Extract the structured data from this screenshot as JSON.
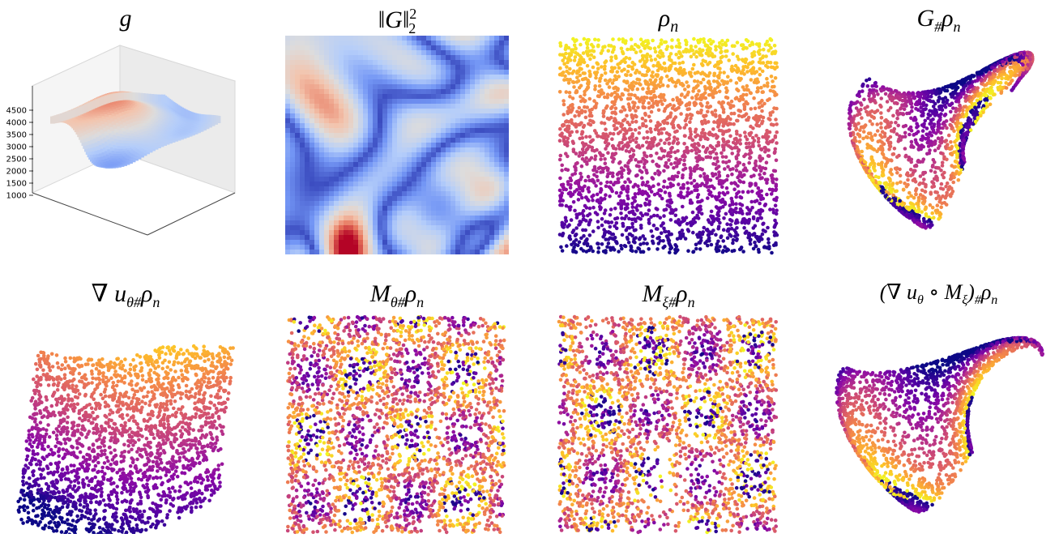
{
  "figure": {
    "panels": [
      {
        "id": "g",
        "title_main": "g",
        "kind": "surface3d",
        "z_ticks": [
          "4500",
          "4000",
          "3500",
          "3000",
          "2500",
          "2000",
          "1500",
          "1000"
        ]
      },
      {
        "id": "G-norm",
        "title_main": "‖G‖",
        "title_sup": "2",
        "title_sub": "2",
        "kind": "heatmap"
      },
      {
        "id": "rho-n",
        "title_main": "ρ",
        "title_sub": "n",
        "kind": "scatter-grid"
      },
      {
        "id": "G-push",
        "title_main": "G",
        "title_sub": "#",
        "title_tail": "ρ",
        "title_tail_sub": "n",
        "kind": "scatter-warped"
      },
      {
        "id": "grad-u-push",
        "title_main": "∇ u",
        "title_sub": "θ#",
        "title_tail": "ρ",
        "title_tail_sub": "n",
        "kind": "scatter-sheared"
      },
      {
        "id": "M-theta-push",
        "title_main": "M",
        "title_sub": "θ#",
        "title_tail": "ρ",
        "title_tail_sub": "n",
        "kind": "scatter-mixed"
      },
      {
        "id": "M-xi-push",
        "title_main": "M",
        "title_sub": "ξ#",
        "title_tail": "ρ",
        "title_tail_sub": "n",
        "kind": "scatter-mixed"
      },
      {
        "id": "composite-push",
        "title_main": "(∇ u",
        "title_sub": "θ",
        "title_mid": " ∘ M",
        "title_mid_sub": "ξ",
        "title_close": ")",
        "title_close_sub": "#",
        "title_tail": "ρ",
        "title_tail_sub": "n",
        "kind": "scatter-warped"
      }
    ],
    "colormap_points": [
      "#0d0887",
      "#5302a3",
      "#8b0aa5",
      "#b83289",
      "#db5c68",
      "#f48849",
      "#febd2a",
      "#f0f921"
    ],
    "colormap_heat": [
      "#3b4cc0",
      "#7396f5",
      "#b4cdfa",
      "#dddcdc",
      "#f3c4ad",
      "#e7745b",
      "#b40426"
    ]
  }
}
